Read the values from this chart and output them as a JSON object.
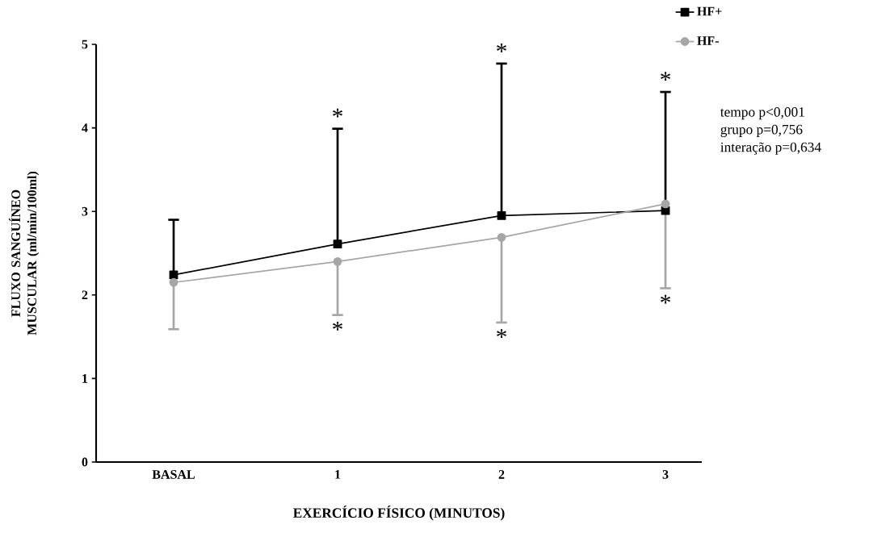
{
  "chart_data": {
    "type": "line",
    "xlabel": "EXERCÍCIO FÍSICO (MINUTOS)",
    "ylabel": "FLUXO SANGUÍNEO MUSCULAR (ml/min/100ml)",
    "categories": [
      "BASAL",
      "1",
      "2",
      "3"
    ],
    "series": [
      {
        "name": "HF+",
        "color": "#000000",
        "marker": "square",
        "values": [
          2.24,
          2.61,
          2.95,
          3.01
        ],
        "errors": [
          [
            2.24,
            2.9
          ],
          [
            2.61,
            3.99
          ],
          [
            2.95,
            4.77
          ],
          [
            3.01,
            4.43
          ]
        ]
      },
      {
        "name": "HF-",
        "color": "#a6a6a6",
        "marker": "circle",
        "values": [
          2.15,
          2.4,
          2.69,
          3.09
        ],
        "errors": [
          [
            1.59,
            2.15
          ],
          [
            1.76,
            2.4
          ],
          [
            1.67,
            2.69
          ],
          [
            2.08,
            3.09
          ]
        ]
      }
    ],
    "ylim": [
      0,
      5
    ],
    "yticks": [
      0,
      1,
      2,
      3,
      4,
      5
    ],
    "legend": "top right",
    "line_style": "solid",
    "annotations": [
      "*",
      "*",
      "*",
      "*",
      "*",
      "*",
      "tempo p<0,001",
      "grupo p=0,756",
      "interação p=0,634"
    ]
  }
}
